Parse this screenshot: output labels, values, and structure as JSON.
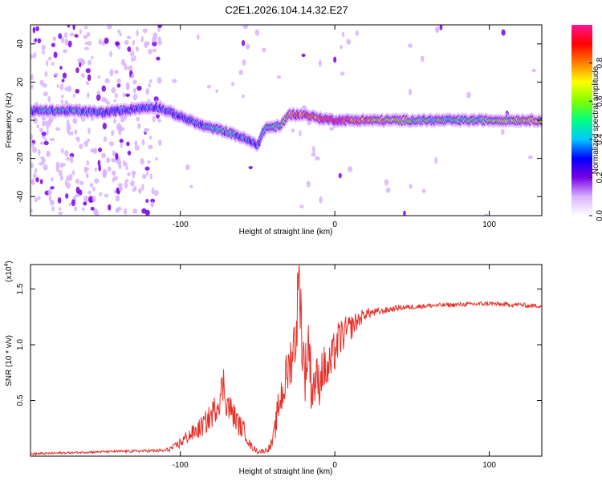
{
  "figure_title": "C2E1.2026.104.14.32.E27",
  "chart_data": [
    {
      "type": "heatmap",
      "title": "C2E1.2026.104.14.32.E27",
      "xlabel": "Height of straight line (km)",
      "ylabel": "Frequency (Hz)",
      "xlim": [
        -197,
        134
      ],
      "ylim": [
        -50,
        50
      ],
      "x_ticks": [
        -100,
        0,
        100
      ],
      "x_tick_labels": [
        "-100",
        "0",
        "100"
      ],
      "y_ticks": [
        -40,
        -20,
        0,
        20,
        40
      ],
      "y_tick_labels": [
        "-40",
        "-20",
        "0",
        "20",
        "40"
      ],
      "colorbar": {
        "label": "Normalized spectral amplitude",
        "range": [
          0,
          1
        ],
        "ticks": [
          0.0,
          0.2,
          0.4,
          0.6,
          0.8
        ],
        "tick_labels": [
          "0.0",
          "0.2",
          "0.4",
          "0.6",
          "0.8"
        ],
        "colors": [
          "#ffffff",
          "#d9b3ff",
          "#7a00e6",
          "#0000ff",
          "#00c8ff",
          "#00ff80",
          "#80ff00",
          "#ffff00",
          "#ff8000",
          "#ff0000",
          "#ff1493"
        ]
      },
      "ridge": {
        "x": [
          -197,
          -170,
          -150,
          -130,
          -115,
          -100,
          -85,
          -70,
          -60,
          -50,
          -45,
          -35,
          -30,
          -20,
          -10,
          0,
          20,
          50,
          80,
          110,
          134
        ],
        "frequency": [
          5,
          5,
          4,
          6,
          7,
          2,
          -3,
          -6,
          -9,
          -13,
          -4,
          -3,
          3,
          3,
          1,
          0,
          0,
          0,
          0,
          0,
          0
        ],
        "amplitude": [
          0.35,
          0.4,
          0.35,
          0.3,
          0.3,
          0.35,
          0.4,
          0.45,
          0.4,
          0.35,
          0.45,
          0.5,
          0.7,
          0.8,
          0.85,
          0.95,
          0.75,
          0.55,
          0.5,
          0.6,
          0.7
        ]
      }
    },
    {
      "type": "line",
      "xlabel": "Height of straight line (km)",
      "ylabel": "SNR (10 * v/v)",
      "y_multiplier": "(x10",
      "y_multiplier_exp": "4",
      "y_multiplier_close": ")",
      "xlim": [
        -197,
        134
      ],
      "ylim": [
        0,
        1.72
      ],
      "x_ticks": [
        -100,
        0,
        100
      ],
      "x_tick_labels": [
        "-100",
        "0",
        "100"
      ],
      "y_ticks": [
        0.5,
        1.0,
        1.5
      ],
      "y_tick_labels": [
        "0.5",
        "1.0",
        "1.5"
      ],
      "series": [
        {
          "name": "SNR",
          "color": "#e8302a",
          "x": [
            -197,
            -150,
            -110,
            -104,
            -100,
            -95,
            -90,
            -85,
            -80,
            -75,
            -72,
            -70,
            -66,
            -62,
            -58,
            -55,
            -50,
            -45,
            -42,
            -40,
            -38,
            -36,
            -33,
            -30,
            -28,
            -25,
            -23,
            -21,
            -19,
            -17,
            -15,
            -12,
            -10,
            -8,
            -5,
            -2,
            0,
            3,
            6,
            10,
            15,
            20,
            30,
            40,
            60,
            80,
            100,
            110,
            120,
            125,
            134
          ],
          "y": [
            0.02,
            0.04,
            0.05,
            0.08,
            0.12,
            0.18,
            0.22,
            0.28,
            0.36,
            0.5,
            0.65,
            0.48,
            0.38,
            0.28,
            0.22,
            0.1,
            0.04,
            0.05,
            0.08,
            0.14,
            0.3,
            0.48,
            0.62,
            0.78,
            0.9,
            1.1,
            1.72,
            0.95,
            0.75,
            1.05,
            0.6,
            0.7,
            0.65,
            0.8,
            0.75,
            0.85,
            0.95,
            1.05,
            1.1,
            1.15,
            1.22,
            1.28,
            1.3,
            1.33,
            1.35,
            1.36,
            1.37,
            1.36,
            1.36,
            1.35,
            1.35
          ],
          "noise": [
            0.01,
            0.01,
            0.015,
            0.03,
            0.05,
            0.07,
            0.08,
            0.1,
            0.12,
            0.14,
            0.18,
            0.15,
            0.12,
            0.1,
            0.08,
            0.04,
            0.02,
            0.02,
            0.04,
            0.07,
            0.12,
            0.18,
            0.22,
            0.22,
            0.25,
            0.3,
            0.35,
            0.3,
            0.28,
            0.3,
            0.25,
            0.22,
            0.2,
            0.22,
            0.2,
            0.2,
            0.2,
            0.18,
            0.15,
            0.12,
            0.08,
            0.05,
            0.03,
            0.025,
            0.02,
            0.02,
            0.02,
            0.02,
            0.02,
            0.02,
            0.02
          ]
        }
      ]
    }
  ]
}
